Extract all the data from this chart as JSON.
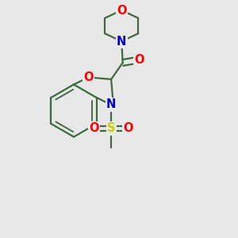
{
  "background_color": "#e8e8e8",
  "bond_color": "#3d6b3d",
  "atom_colors": {
    "O": "#ff0000",
    "N": "#0000cd",
    "S": "#cccc00",
    "C": "#000000"
  },
  "bond_width": 1.6,
  "font_size_atom": 10.5,
  "figsize": [
    3.0,
    3.0
  ],
  "dpi": 100
}
